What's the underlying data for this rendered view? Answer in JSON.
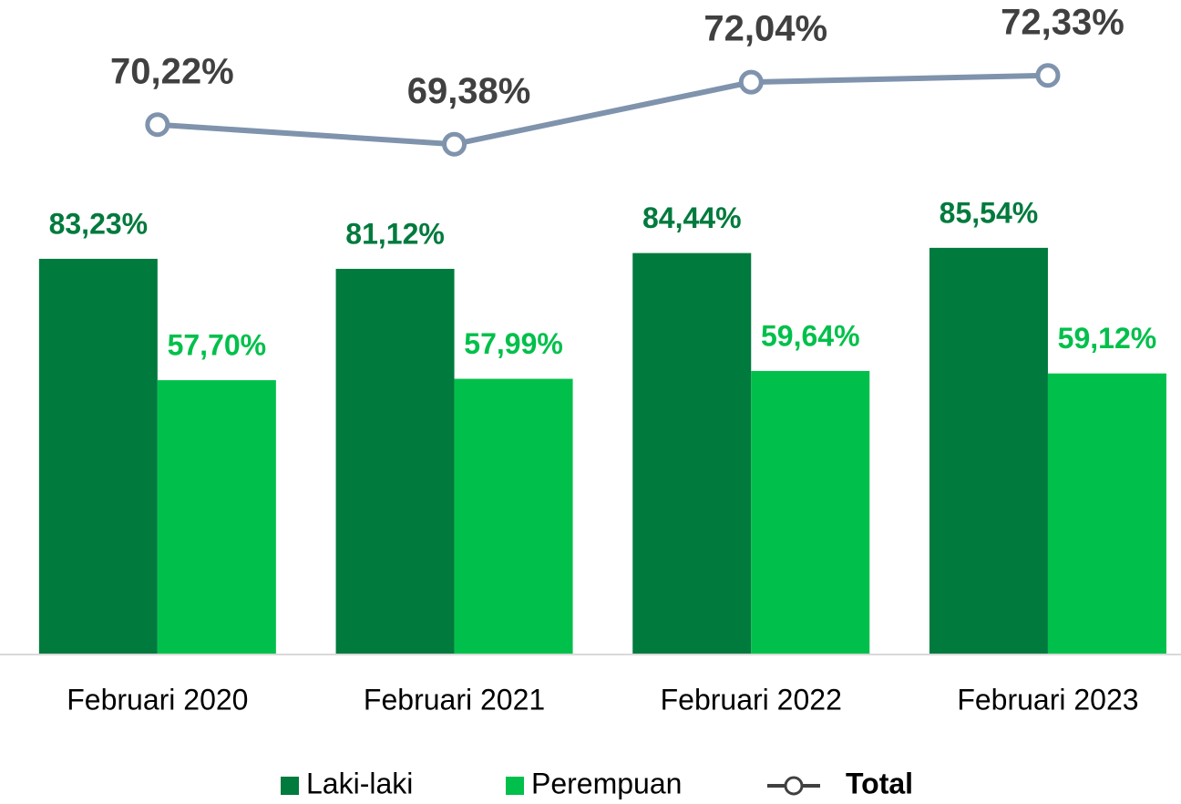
{
  "chart_data": {
    "type": "bar",
    "categories": [
      "Februari 2020",
      "Februari 2021",
      "Februari 2022",
      "Februari 2023"
    ],
    "ylim": [
      0,
      130
    ],
    "y2lim": [
      47.5,
      74
    ],
    "legend": "bottom",
    "series": [
      {
        "name": "Laki-laki",
        "color": "#007a3d",
        "values": [
          83.23,
          81.12,
          84.44,
          85.54
        ],
        "value_labels": [
          "83,23%",
          "81,12%",
          "84,44%",
          "85,54%"
        ]
      },
      {
        "name": "Perempuan",
        "color": "#00c04b",
        "values": [
          57.7,
          57.99,
          59.64,
          59.12
        ],
        "value_labels": [
          "57,70%",
          "57,99%",
          "59,64%",
          "59,12%"
        ]
      },
      {
        "name": "Total",
        "type": "line",
        "axis": "y2",
        "color": "#7f93ad",
        "values": [
          70.22,
          69.38,
          72.04,
          72.33
        ],
        "value_labels": [
          "70,22%",
          "69,38%",
          "72,04%",
          "72,33%"
        ]
      }
    ]
  }
}
